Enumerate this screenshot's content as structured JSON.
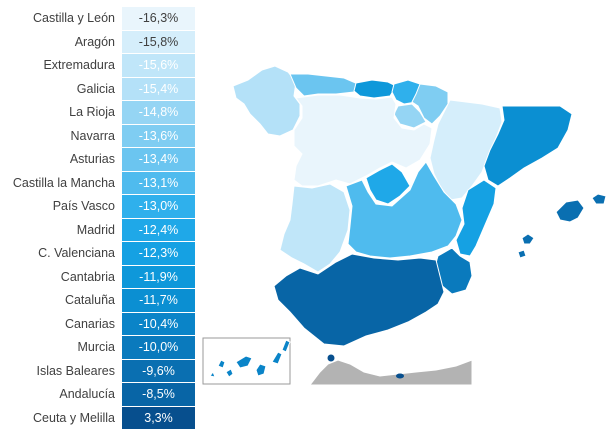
{
  "chart_data": {
    "type": "table",
    "series": [
      {
        "categories": [
          "Castilla y León",
          "Aragón",
          "Extremadura",
          "Galicia",
          "La Rioja",
          "Navarra",
          "Asturias",
          "Castilla la Mancha",
          "País Vasco",
          "Madrid",
          "C. Valenciana",
          "Cantabria",
          "Cataluña",
          "Canarias",
          "Murcia",
          "Islas Baleares",
          "Andalucía",
          "Ceuta y Melilla"
        ],
        "values": [
          -16.3,
          -15.8,
          -15.6,
          -15.4,
          -14.8,
          -13.6,
          -13.4,
          -13.1,
          -13.0,
          -12.4,
          -12.3,
          -11.9,
          -11.7,
          -10.4,
          -10.0,
          -9.6,
          -8.5,
          3.3
        ]
      }
    ],
    "rows": [
      {
        "region": "Castilla y León",
        "label": "-16,3%",
        "color": "#e9f5fc",
        "text": "#404040"
      },
      {
        "region": "Aragón",
        "label": "-15,8%",
        "color": "#d5eefb",
        "text": "#404040"
      },
      {
        "region": "Extremadura",
        "label": "-15,6%",
        "color": "#c0e6f9",
        "text": "#ffffff"
      },
      {
        "region": "Galicia",
        "label": "-15,4%",
        "color": "#b4e1f8",
        "text": "#ffffff"
      },
      {
        "region": "La Rioja",
        "label": "-14,8%",
        "color": "#95d5f4",
        "text": "#ffffff"
      },
      {
        "region": "Navarra",
        "label": "-13,6%",
        "color": "#7fcdf2",
        "text": "#ffffff"
      },
      {
        "region": "Asturias",
        "label": "-13,4%",
        "color": "#6bc5f0",
        "text": "#ffffff"
      },
      {
        "region": "Castilla la Mancha",
        "label": "-13,1%",
        "color": "#4fbbee",
        "text": "#ffffff"
      },
      {
        "region": "País Vasco",
        "label": "-13,0%",
        "color": "#2fb0ec",
        "text": "#ffffff"
      },
      {
        "region": "Madrid",
        "label": "-12,4%",
        "color": "#1fa8e8",
        "text": "#ffffff"
      },
      {
        "region": "C. Valenciana",
        "label": "-12,3%",
        "color": "#15a1e3",
        "text": "#ffffff"
      },
      {
        "region": "Cantabria",
        "label": "-11,9%",
        "color": "#0e98da",
        "text": "#ffffff"
      },
      {
        "region": "Cataluña",
        "label": "-11,7%",
        "color": "#0b8fd2",
        "text": "#ffffff"
      },
      {
        "region": "Canarias",
        "label": "-10,4%",
        "color": "#0a84c8",
        "text": "#ffffff"
      },
      {
        "region": "Murcia",
        "label": "-10,0%",
        "color": "#0a7abd",
        "text": "#ffffff"
      },
      {
        "region": "Islas Baleares",
        "label": "-9,6%",
        "color": "#0a6fb1",
        "text": "#ffffff"
      },
      {
        "region": "Andalucía",
        "label": "-8,5%",
        "color": "#0865a6",
        "text": "#ffffff"
      },
      {
        "region": "Ceuta y Melilla",
        "label": "3,3%",
        "color": "#074f8e",
        "text": "#ffffff"
      }
    ]
  },
  "map_colors": {
    "Castilla y León": "#e9f5fc",
    "Aragón": "#d5eefb",
    "Extremadura": "#c0e6f9",
    "Galicia": "#b4e1f8",
    "La Rioja": "#95d5f4",
    "Navarra": "#7fcdf2",
    "Asturias": "#6bc5f0",
    "Castilla la Mancha": "#4fbbee",
    "País Vasco": "#2fb0ec",
    "Madrid": "#1fa8e8",
    "C. Valenciana": "#15a1e3",
    "Cantabria": "#0e98da",
    "Cataluña": "#0b8fd2",
    "Canarias": "#0a84c8",
    "Murcia": "#0a7abd",
    "Islas Baleares": "#0a6fb1",
    "Andalucía": "#0865a6",
    "Ceuta y Melilla": "#074f8e",
    "africa": "#b3b3b3",
    "border": "#ffffff"
  }
}
